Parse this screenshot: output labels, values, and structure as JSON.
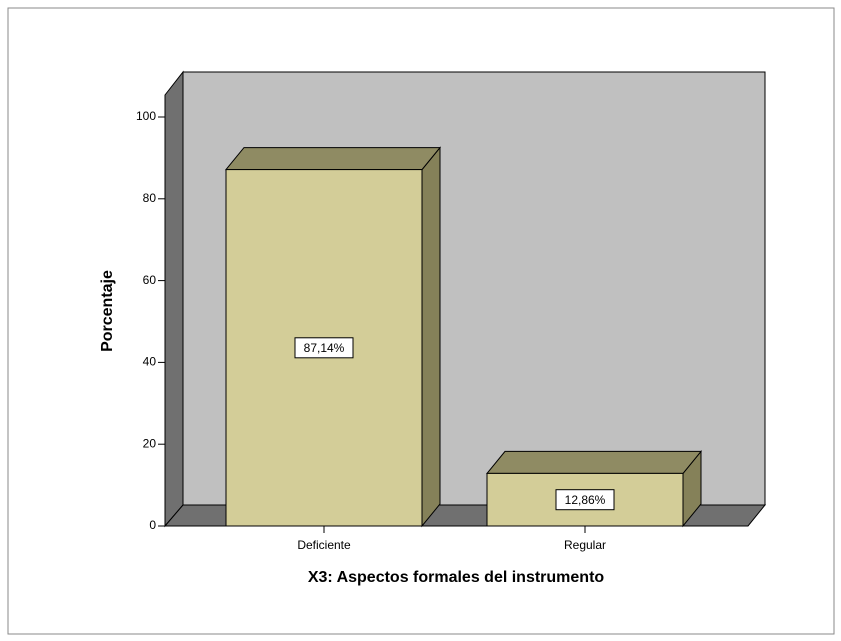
{
  "chart_data": {
    "type": "bar3d",
    "x_label": "X3: Aspectos formales del instrumento",
    "y_label": "Porcentaje",
    "categories": [
      "Deficiente",
      "Regular"
    ],
    "values": [
      87.14,
      12.86
    ],
    "value_labels": [
      "87,14%",
      "12,86%"
    ],
    "color": "#d3cd98",
    "ylim": [
      0,
      100
    ],
    "yticks": [
      0,
      20,
      40,
      60,
      80,
      100
    ]
  }
}
